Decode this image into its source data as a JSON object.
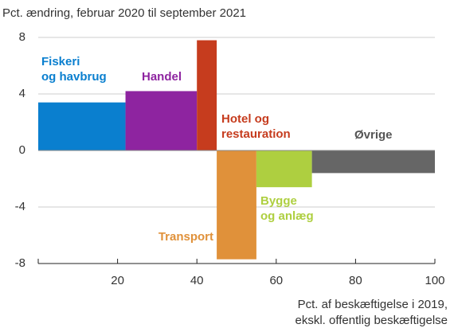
{
  "chart_data": {
    "type": "bar",
    "title": "Pct. ændring, februar 2020 til september 2021",
    "xlabel": [
      "Pct. af beskæftigelse i 2019,",
      "ekskl. offentlig beskæftigelse"
    ],
    "categories": [
      [
        "Fiskeri",
        "og havbrug"
      ],
      [
        "Handel"
      ],
      [
        "Hotel og",
        "restauration"
      ],
      [
        "Transport"
      ],
      [
        "Bygge",
        "og anlæg"
      ],
      [
        "Øvrige"
      ]
    ],
    "bins": [
      0,
      22,
      40,
      45,
      55,
      69,
      100
    ],
    "values": [
      3.4,
      4.2,
      7.8,
      -7.7,
      -2.6,
      -1.6
    ],
    "colors": [
      "#0a7fcf",
      "#8e24a0",
      "#c63c1e",
      "#e0913a",
      "#aecf40",
      "#666666"
    ],
    "xlim": [
      0,
      100
    ],
    "xticks": [
      20,
      40,
      60,
      80,
      100
    ],
    "ylim": [
      -8,
      8
    ],
    "yticks": [
      8,
      4,
      0,
      -4,
      -8
    ],
    "grid": true
  }
}
